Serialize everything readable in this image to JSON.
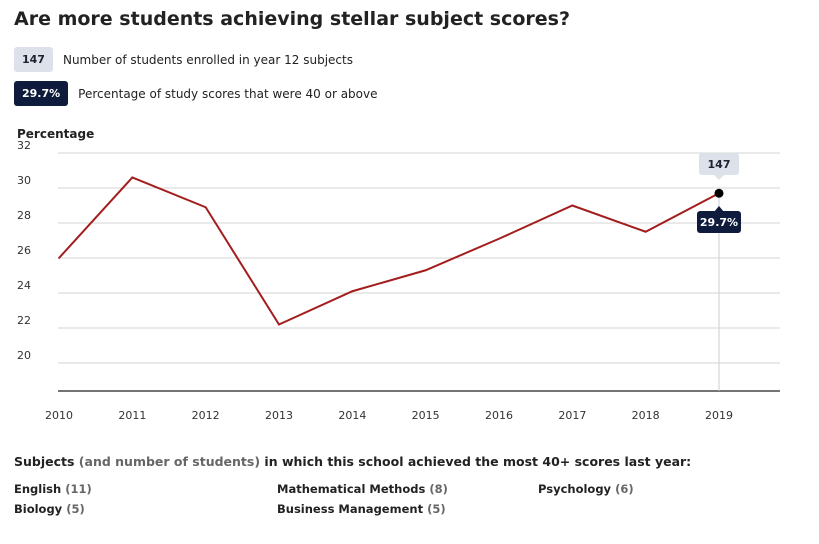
{
  "title": "Are more students achieving stellar subject scores?",
  "legend": [
    {
      "badge": "147",
      "text": "Number of students enrolled in year 12 subjects",
      "style": "gray"
    },
    {
      "badge": "29.7%",
      "text": "Percentage of study scores that were 40 or above",
      "style": "navy"
    }
  ],
  "chart_data": {
    "type": "line",
    "ylabel": "Percentage",
    "x": [
      "2010",
      "2011",
      "2012",
      "2013",
      "2014",
      "2015",
      "2016",
      "2017",
      "2018",
      "2019"
    ],
    "y": [
      26.0,
      30.6,
      28.9,
      22.2,
      24.1,
      25.3,
      27.1,
      29.0,
      27.5,
      29.7
    ],
    "yticks": [
      20,
      22,
      24,
      26,
      28,
      30,
      32
    ],
    "ylim": [
      18,
      32
    ],
    "grid": true,
    "line_color": "#a31d1d",
    "highlight": {
      "index": 9,
      "students": "147",
      "percentage": "29.7%"
    }
  },
  "subjects": {
    "heading_main": "Subjects",
    "heading_muted": "(and number of students)",
    "heading_rest": "in which this school achieved the most 40+ scores last year:",
    "items": [
      {
        "name": "English",
        "count": "(11)"
      },
      {
        "name": "Mathematical Methods",
        "count": "(8)"
      },
      {
        "name": "Psychology",
        "count": "(6)"
      },
      {
        "name": "Biology",
        "count": "(5)"
      },
      {
        "name": "Business Management",
        "count": "(5)"
      }
    ]
  },
  "colors": {
    "navy": "#0f1b3d",
    "gray_badge": "#dde2ea",
    "line": "#a31d1d",
    "grid": "#d4d4d4"
  }
}
